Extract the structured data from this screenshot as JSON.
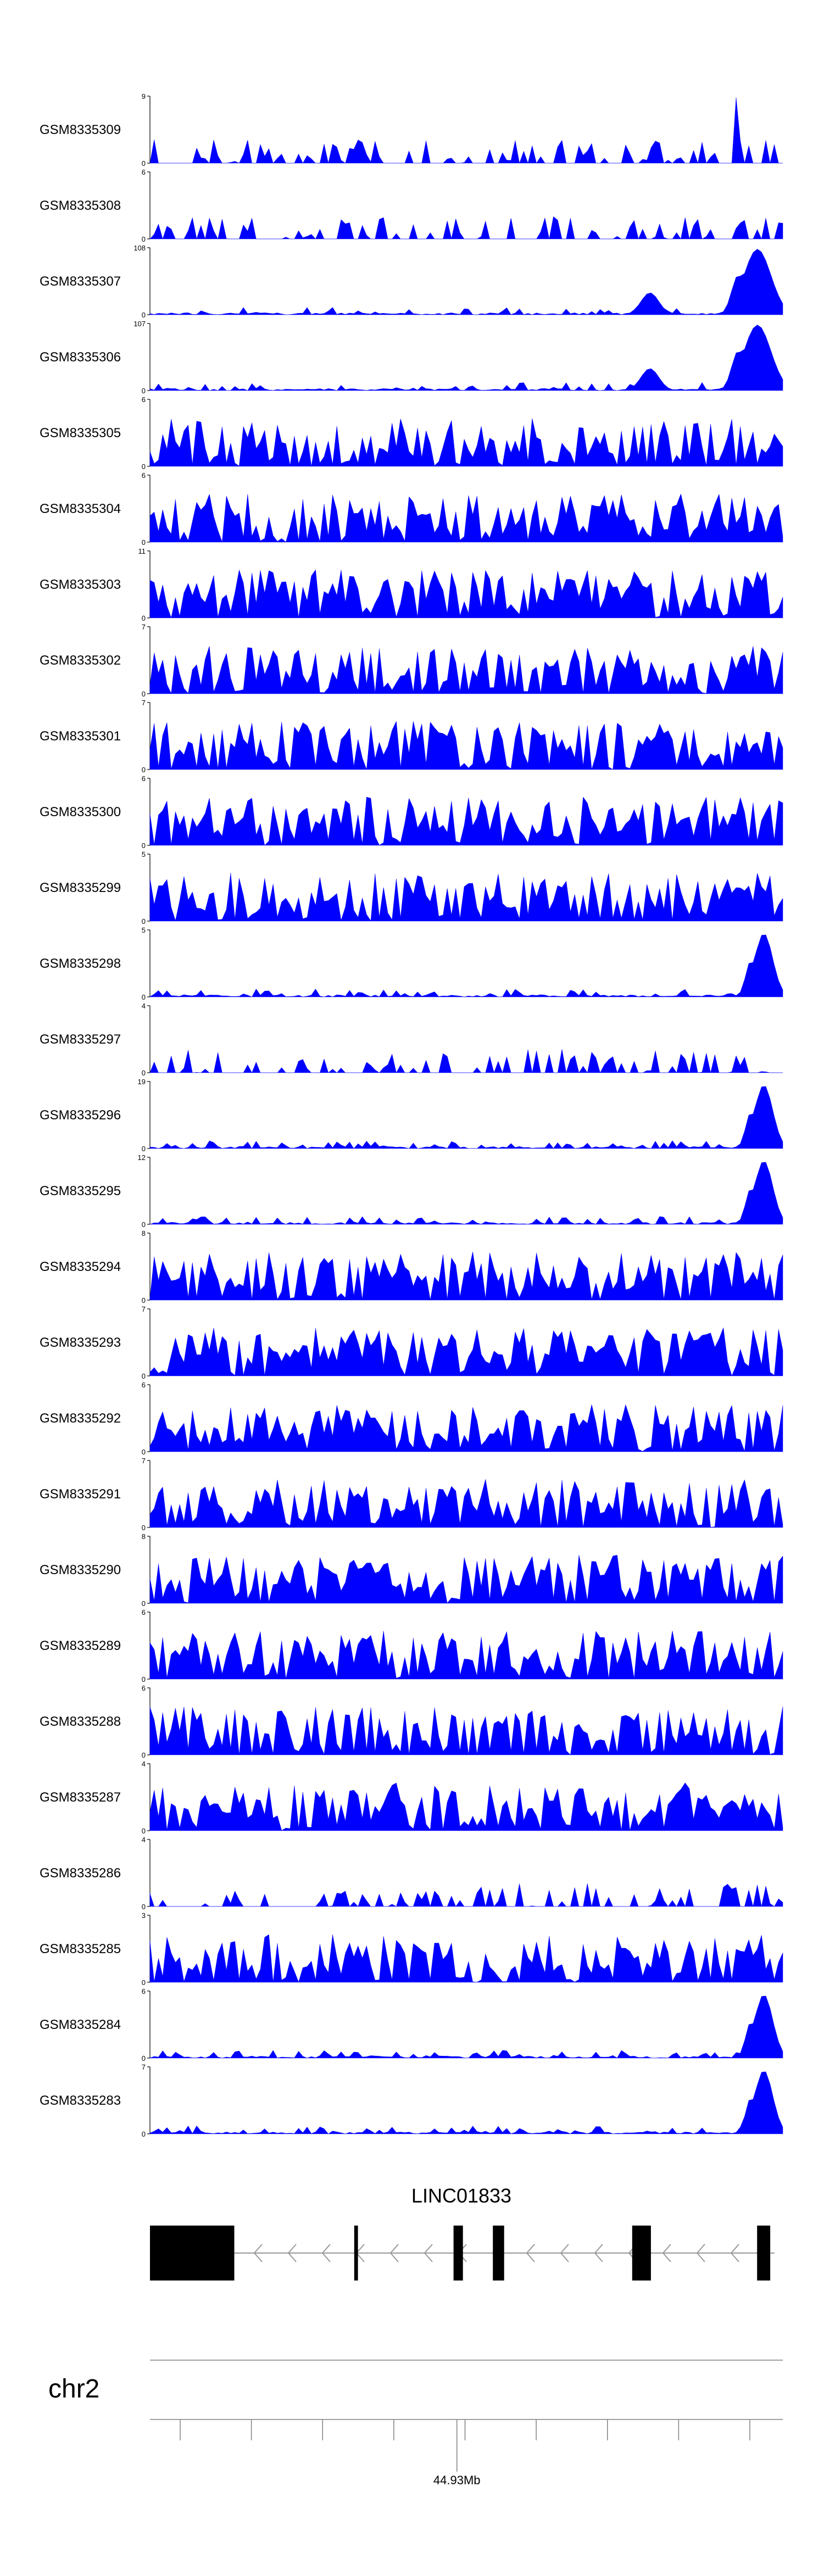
{
  "chart_data": {
    "type": "area",
    "title": "",
    "series_color": "#0000ff",
    "axis_color": "#000000",
    "genome_axis_color": "#808080",
    "samples": [
      {
        "name": "GSM8335309",
        "ymax": "9"
      },
      {
        "name": "GSM8335308",
        "ymax": "6"
      },
      {
        "name": "GSM8335307",
        "ymax": "108"
      },
      {
        "name": "GSM8335306",
        "ymax": "107"
      },
      {
        "name": "GSM8335305",
        "ymax": "6"
      },
      {
        "name": "GSM8335304",
        "ymax": "6"
      },
      {
        "name": "GSM8335303",
        "ymax": "11"
      },
      {
        "name": "GSM8335302",
        "ymax": "7"
      },
      {
        "name": "GSM8335301",
        "ymax": "7"
      },
      {
        "name": "GSM8335300",
        "ymax": "6"
      },
      {
        "name": "GSM8335299",
        "ymax": "5"
      },
      {
        "name": "GSM8335298",
        "ymax": "5"
      },
      {
        "name": "GSM8335297",
        "ymax": "4"
      },
      {
        "name": "GSM8335296",
        "ymax": "19"
      },
      {
        "name": "GSM8335295",
        "ymax": "12"
      },
      {
        "name": "GSM8335294",
        "ymax": "8"
      },
      {
        "name": "GSM8335293",
        "ymax": "7"
      },
      {
        "name": "GSM8335292",
        "ymax": "6"
      },
      {
        "name": "GSM8335291",
        "ymax": "7"
      },
      {
        "name": "GSM8335290",
        "ymax": "8"
      },
      {
        "name": "GSM8335289",
        "ymax": "6"
      },
      {
        "name": "GSM8335288",
        "ymax": "6"
      },
      {
        "name": "GSM8335287",
        "ymax": "4"
      },
      {
        "name": "GSM8335286",
        "ymax": "4"
      },
      {
        "name": "GSM8335285",
        "ymax": "3"
      },
      {
        "name": "GSM8335284",
        "ymax": "6"
      },
      {
        "name": "GSM8335283",
        "ymax": "7"
      }
    ],
    "ymin_label": "0",
    "gene": {
      "name": "LINC01833",
      "strand": "-",
      "exons": [
        [
          0.0,
          0.135
        ],
        [
          0.327,
          0.333
        ],
        [
          0.486,
          0.501
        ],
        [
          0.549,
          0.567
        ],
        [
          0.772,
          0.802
        ],
        [
          0.972,
          0.993
        ]
      ]
    },
    "chromosome": "chr2",
    "axis": {
      "minor_ticks": 9,
      "major_tick_label": "44.93Mb",
      "major_tick_position": 0.485
    }
  }
}
